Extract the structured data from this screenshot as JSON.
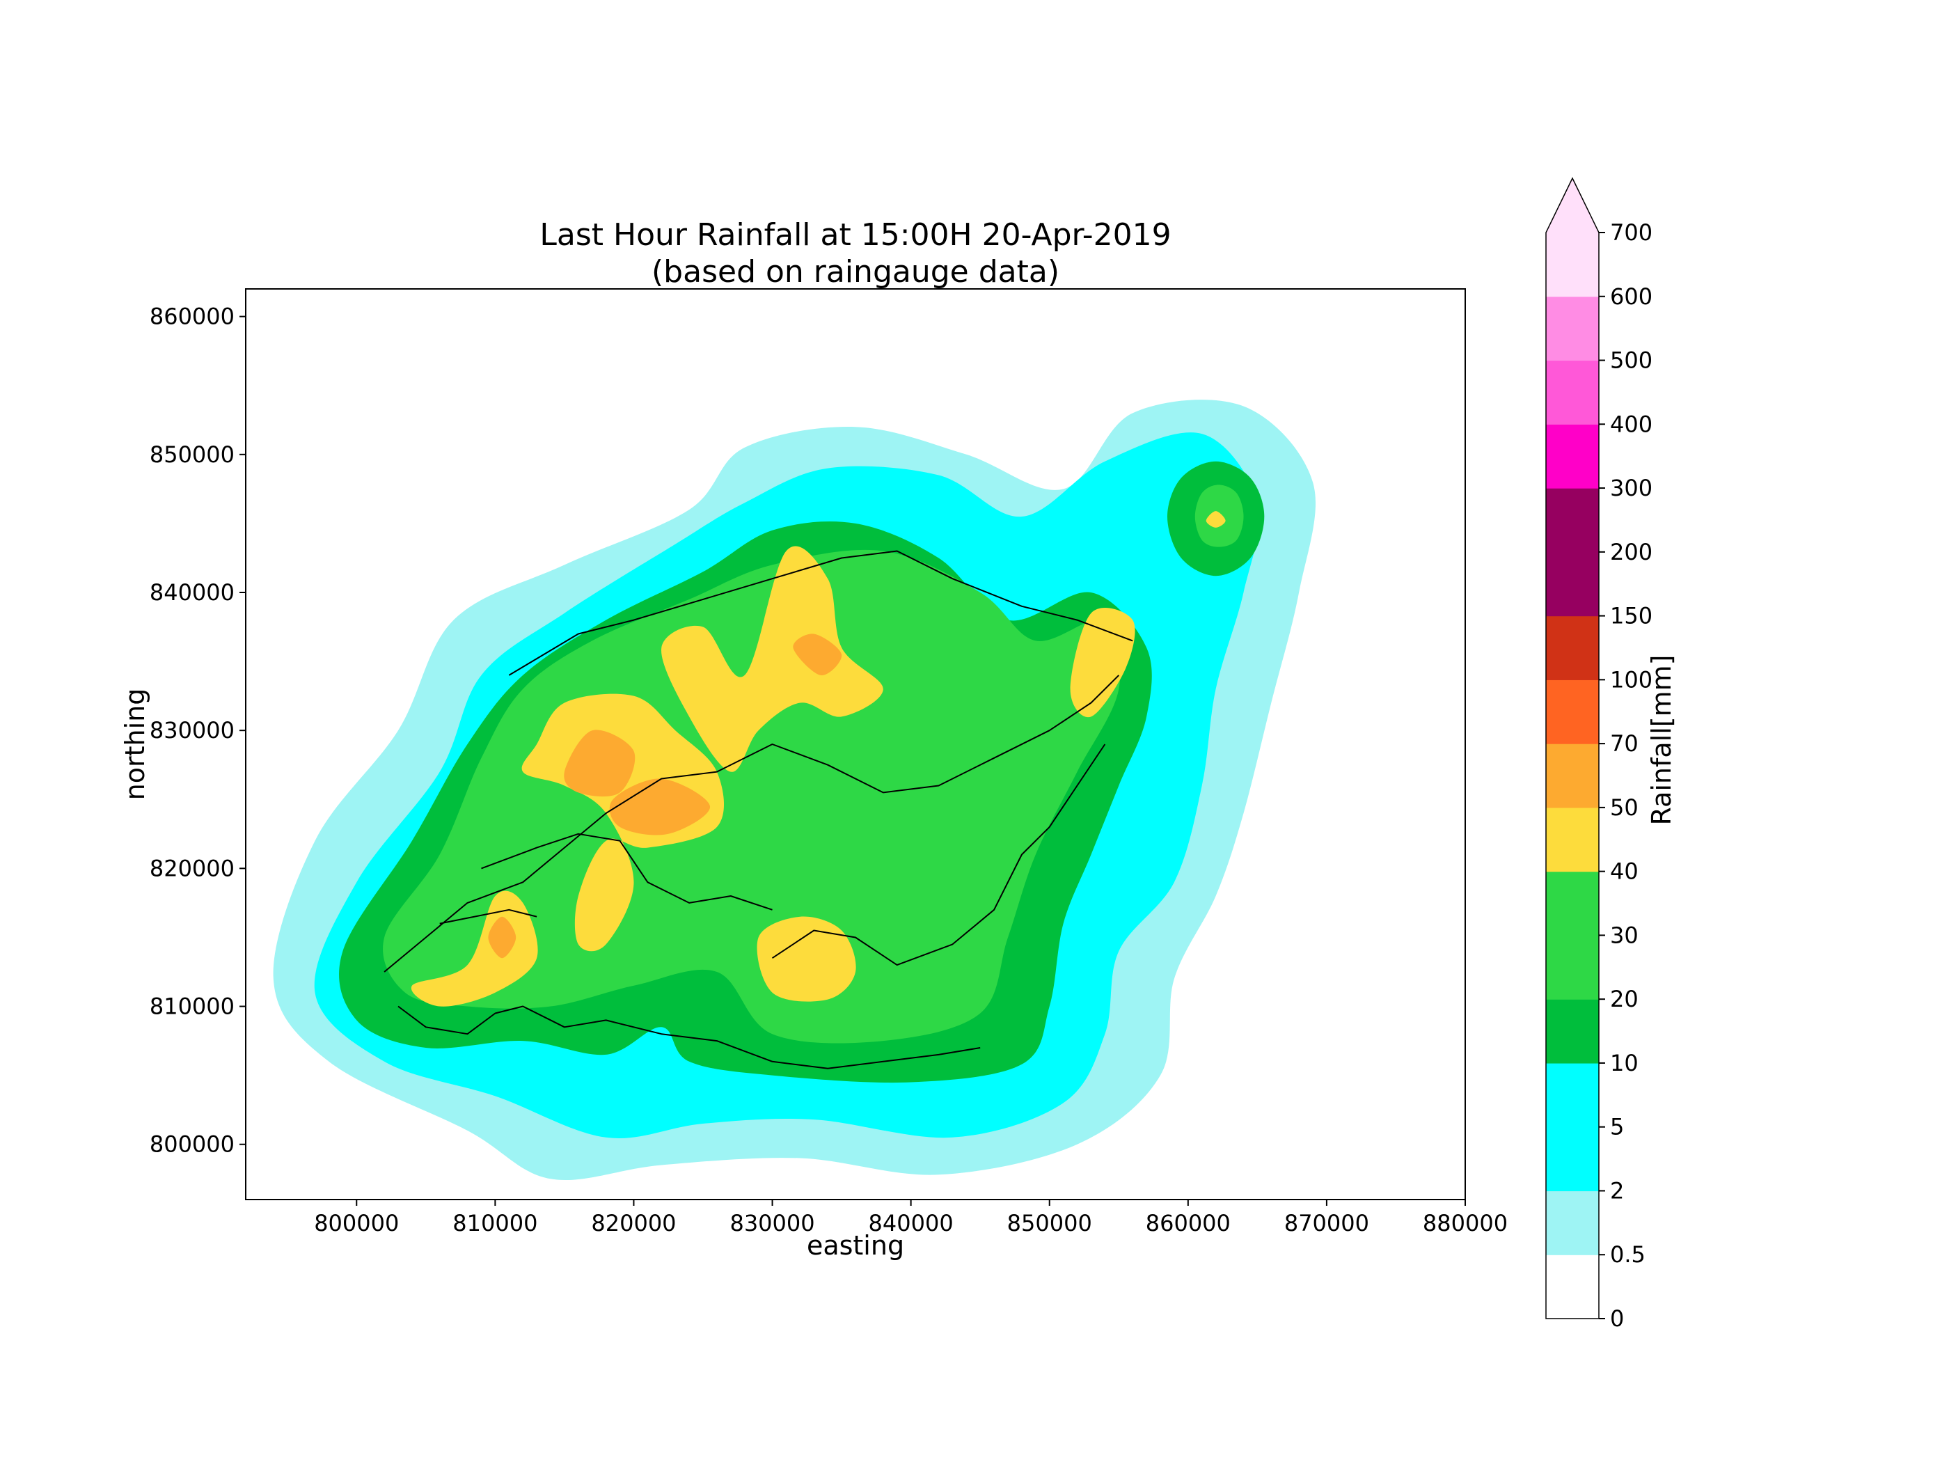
{
  "chart_data": {
    "type": "heatmap",
    "title_lines": [
      "Last Hour Rainfall at 15:00H 20-Apr-2019",
      "(based on raingauge data)"
    ],
    "xlabel": "easting",
    "ylabel": "northing",
    "xlim": [
      792000,
      880000
    ],
    "ylim": [
      796000,
      862000
    ],
    "x_ticks": [
      800000,
      810000,
      820000,
      830000,
      840000,
      850000,
      860000,
      870000,
      880000
    ],
    "x_tick_labels": [
      "800000",
      "810000",
      "820000",
      "830000",
      "840000",
      "850000",
      "860000",
      "870000",
      "880000"
    ],
    "y_ticks": [
      800000,
      810000,
      820000,
      830000,
      840000,
      850000,
      860000
    ],
    "y_tick_labels": [
      "800000",
      "810000",
      "820000",
      "830000",
      "840000",
      "850000",
      "860000"
    ],
    "colorbar": {
      "label": "Rainfall[mm]",
      "extend": "max",
      "levels": [
        0,
        0.5,
        2,
        5,
        10,
        20,
        30,
        40,
        50,
        70,
        100,
        150,
        200,
        300,
        400,
        500,
        600,
        700
      ],
      "level_labels": [
        "0",
        "0.5",
        "2",
        "5",
        "10",
        "20",
        "30",
        "40",
        "50",
        "70",
        "100",
        "150",
        "200",
        "300",
        "400",
        "500",
        "600",
        "700"
      ],
      "colors": [
        "#ffffff",
        "#9ef4f4",
        "#00ffff",
        "#00ffff",
        "#00be3c",
        "#2ed846",
        "#2ed846",
        "#fddc3c",
        "#fdaa30",
        "#ff6422",
        "#d03216",
        "#960060",
        "#960060",
        "#ff00c8",
        "#ff58d8",
        "#ff8ce4",
        "#ffe0fa"
      ],
      "extend_color": "#ffe0fa"
    },
    "contour_bands": [
      {
        "range": "0.5-2",
        "color": "#9ef4f4",
        "polygon": [
          [
            808000,
            801000
          ],
          [
            814000,
            797500
          ],
          [
            822000,
            798500
          ],
          [
            832000,
            799000
          ],
          [
            842000,
            797800
          ],
          [
            852000,
            800000
          ],
          [
            858000,
            805000
          ],
          [
            859000,
            812000
          ],
          [
            862000,
            818000
          ],
          [
            864000,
            824000
          ],
          [
            866000,
            832000
          ],
          [
            868000,
            840000
          ],
          [
            869000,
            848000
          ],
          [
            864000,
            853500
          ],
          [
            856000,
            853000
          ],
          [
            851000,
            847500
          ],
          [
            844000,
            850000
          ],
          [
            836000,
            852000
          ],
          [
            828000,
            850500
          ],
          [
            824000,
            846000
          ],
          [
            815000,
            842000
          ],
          [
            807000,
            838000
          ],
          [
            803000,
            830000
          ],
          [
            797000,
            822000
          ],
          [
            794000,
            812000
          ],
          [
            798000,
            806000
          ]
        ]
      },
      {
        "range": "2-10",
        "color": "#00ffff",
        "polygon": [
          [
            810000,
            803500
          ],
          [
            818000,
            800500
          ],
          [
            825000,
            801500
          ],
          [
            833000,
            801800
          ],
          [
            843000,
            800500
          ],
          [
            851000,
            803000
          ],
          [
            854000,
            808000
          ],
          [
            855000,
            814000
          ],
          [
            859000,
            819000
          ],
          [
            861000,
            826000
          ],
          [
            862000,
            833000
          ],
          [
            864000,
            840000
          ],
          [
            865000,
            846500
          ],
          [
            861000,
            851500
          ],
          [
            854000,
            849500
          ],
          [
            848000,
            845500
          ],
          [
            842000,
            848500
          ],
          [
            834000,
            849000
          ],
          [
            828000,
            846500
          ],
          [
            823000,
            843500
          ],
          [
            815000,
            838500
          ],
          [
            809000,
            834000
          ],
          [
            806000,
            827000
          ],
          [
            800000,
            819000
          ],
          [
            797000,
            811000
          ],
          [
            802000,
            806000
          ]
        ]
      },
      {
        "range": "10-20",
        "color": "#00be3c",
        "polygon": [
          [
            812000,
            807500
          ],
          [
            818000,
            806500
          ],
          [
            822000,
            808500
          ],
          [
            824000,
            806000
          ],
          [
            830000,
            805000
          ],
          [
            840000,
            804500
          ],
          [
            848000,
            805800
          ],
          [
            850000,
            810000
          ],
          [
            851000,
            816000
          ],
          [
            853000,
            821000
          ],
          [
            855000,
            826000
          ],
          [
            857000,
            831000
          ],
          [
            857000,
            836000
          ],
          [
            853000,
            840000
          ],
          [
            847000,
            838000
          ],
          [
            842000,
            842500
          ],
          [
            836000,
            845000
          ],
          [
            830000,
            844500
          ],
          [
            825000,
            841500
          ],
          [
            818000,
            838000
          ],
          [
            812000,
            834000
          ],
          [
            808000,
            829000
          ],
          [
            804000,
            822000
          ],
          [
            799000,
            814000
          ],
          [
            800000,
            809000
          ],
          [
            805000,
            807000
          ]
        ]
      },
      {
        "range": "10-20",
        "color": "#00be3c",
        "polygon": [
          [
            858500,
            845500
          ],
          [
            859500,
            842500
          ],
          [
            862000,
            841200
          ],
          [
            864500,
            842500
          ],
          [
            865500,
            845500
          ],
          [
            864500,
            848300
          ],
          [
            862000,
            849500
          ],
          [
            859500,
            848300
          ]
        ]
      },
      {
        "range": "20-40",
        "color": "#2ed846",
        "polygon": [
          [
            814000,
            810000
          ],
          [
            820000,
            811500
          ],
          [
            826000,
            812500
          ],
          [
            830000,
            808000
          ],
          [
            838000,
            807500
          ],
          [
            845000,
            809500
          ],
          [
            847000,
            815000
          ],
          [
            849000,
            821000
          ],
          [
            852000,
            827000
          ],
          [
            855000,
            833000
          ],
          [
            854000,
            838000
          ],
          [
            849000,
            836500
          ],
          [
            845000,
            840000
          ],
          [
            838000,
            843000
          ],
          [
            830000,
            842000
          ],
          [
            824000,
            839500
          ],
          [
            817000,
            836500
          ],
          [
            812000,
            833000
          ],
          [
            809000,
            828000
          ],
          [
            806000,
            821000
          ],
          [
            802000,
            815000
          ],
          [
            803500,
            811000
          ],
          [
            808000,
            810000
          ]
        ]
      },
      {
        "range": "20-40",
        "color": "#2ed846",
        "polygon": [
          [
            860500,
            845500
          ],
          [
            861000,
            843800
          ],
          [
            862200,
            843300
          ],
          [
            863500,
            843800
          ],
          [
            864000,
            845500
          ],
          [
            863500,
            847200
          ],
          [
            862200,
            847800
          ],
          [
            861000,
            847200
          ]
        ]
      },
      {
        "range": "40-50",
        "color": "#fddc3c",
        "polygon": [
          [
            813000,
            829000
          ],
          [
            815000,
            832000
          ],
          [
            820000,
            832500
          ],
          [
            823000,
            830000
          ],
          [
            826000,
            827000
          ],
          [
            826000,
            823000
          ],
          [
            821000,
            821500
          ],
          [
            818000,
            822000
          ],
          [
            816000,
            818000
          ],
          [
            816000,
            814500
          ],
          [
            818000,
            814500
          ],
          [
            820000,
            819000
          ],
          [
            818000,
            824000
          ],
          [
            815000,
            826000
          ],
          [
            812000,
            827000
          ]
        ]
      },
      {
        "range": "40-50",
        "color": "#fddc3c",
        "polygon": [
          [
            822000,
            836000
          ],
          [
            825000,
            837500
          ],
          [
            828000,
            834000
          ],
          [
            831000,
            843000
          ],
          [
            834000,
            841000
          ],
          [
            835000,
            836000
          ],
          [
            838000,
            833000
          ],
          [
            835000,
            831000
          ],
          [
            832000,
            832000
          ],
          [
            829000,
            830000
          ],
          [
            827000,
            827000
          ],
          [
            824000,
            831000
          ]
        ]
      },
      {
        "range": "40-50",
        "color": "#fddc3c",
        "polygon": [
          [
            804000,
            811500
          ],
          [
            808000,
            813000
          ],
          [
            810000,
            818000
          ],
          [
            812000,
            817500
          ],
          [
            813000,
            813500
          ],
          [
            810000,
            811000
          ],
          [
            806000,
            810000
          ]
        ]
      },
      {
        "range": "40-50",
        "color": "#fddc3c",
        "polygon": [
          [
            829000,
            815000
          ],
          [
            832000,
            816500
          ],
          [
            835000,
            815500
          ],
          [
            836000,
            812500
          ],
          [
            834000,
            810500
          ],
          [
            830000,
            811000
          ]
        ]
      },
      {
        "range": "40-50",
        "color": "#fddc3c",
        "polygon": [
          [
            851500,
            833000
          ],
          [
            853000,
            838500
          ],
          [
            856000,
            838000
          ],
          [
            855500,
            834500
          ],
          [
            853000,
            831000
          ]
        ]
      },
      {
        "range": "40-50",
        "color": "#fddc3c",
        "polygon": [
          [
            861300,
            845200
          ],
          [
            862000,
            844700
          ],
          [
            862700,
            845200
          ],
          [
            862000,
            845900
          ]
        ]
      },
      {
        "range": "50-70",
        "color": "#fdaa30",
        "polygon": [
          [
            815000,
            827000
          ],
          [
            817000,
            830000
          ],
          [
            820000,
            828500
          ],
          [
            819000,
            825500
          ],
          [
            816000,
            825500
          ]
        ]
      },
      {
        "range": "50-70",
        "color": "#fdaa30",
        "polygon": [
          [
            818500,
            825000
          ],
          [
            822000,
            826500
          ],
          [
            825500,
            824500
          ],
          [
            822500,
            822500
          ],
          [
            819000,
            823000
          ]
        ]
      },
      {
        "range": "50-70",
        "color": "#fdaa30",
        "polygon": [
          [
            831500,
            836000
          ],
          [
            833000,
            837000
          ],
          [
            835000,
            835500
          ],
          [
            833500,
            834000
          ]
        ]
      },
      {
        "range": "50-70",
        "color": "#fdaa30",
        "polygon": [
          [
            809500,
            815000
          ],
          [
            810500,
            816500
          ],
          [
            811500,
            815000
          ],
          [
            810500,
            813500
          ]
        ]
      }
    ],
    "coastline_paths": [
      [
        [
          802000,
          812500
        ],
        [
          805000,
          815000
        ],
        [
          808000,
          817500
        ],
        [
          812000,
          819000
        ],
        [
          815000,
          821500
        ],
        [
          818000,
          824000
        ],
        [
          822000,
          826500
        ],
        [
          826000,
          827000
        ],
        [
          830000,
          829000
        ],
        [
          834000,
          827500
        ],
        [
          838000,
          825500
        ],
        [
          842000,
          826000
        ],
        [
          846000,
          828000
        ],
        [
          850000,
          830000
        ],
        [
          853000,
          832000
        ],
        [
          855000,
          834000
        ]
      ],
      [
        [
          803000,
          810000
        ],
        [
          805000,
          808500
        ],
        [
          808000,
          808000
        ],
        [
          810000,
          809500
        ],
        [
          812000,
          810000
        ],
        [
          815000,
          808500
        ],
        [
          818000,
          809000
        ],
        [
          822000,
          808000
        ],
        [
          826000,
          807500
        ],
        [
          830000,
          806000
        ],
        [
          834000,
          805500
        ],
        [
          838000,
          806000
        ],
        [
          842000,
          806500
        ],
        [
          845000,
          807000
        ]
      ],
      [
        [
          830000,
          813500
        ],
        [
          833000,
          815500
        ],
        [
          836000,
          815000
        ],
        [
          839000,
          813000
        ],
        [
          843000,
          814500
        ],
        [
          846000,
          817000
        ],
        [
          848000,
          821000
        ],
        [
          850000,
          823000
        ],
        [
          852000,
          826000
        ],
        [
          854000,
          829000
        ]
      ],
      [
        [
          811000,
          834000
        ],
        [
          816000,
          837000
        ],
        [
          820000,
          838000
        ],
        [
          825000,
          839500
        ],
        [
          830000,
          841000
        ],
        [
          835000,
          842500
        ],
        [
          839000,
          843000
        ],
        [
          843000,
          841000
        ],
        [
          848000,
          839000
        ],
        [
          852000,
          838000
        ],
        [
          856000,
          836500
        ]
      ],
      [
        [
          809000,
          820000
        ],
        [
          813000,
          821500
        ],
        [
          816000,
          822500
        ],
        [
          819000,
          822000
        ],
        [
          821000,
          819000
        ],
        [
          824000,
          817500
        ],
        [
          827000,
          818000
        ],
        [
          830000,
          817000
        ]
      ],
      [
        [
          806000,
          816000
        ],
        [
          811000,
          817000
        ],
        [
          813000,
          816500
        ]
      ]
    ]
  }
}
